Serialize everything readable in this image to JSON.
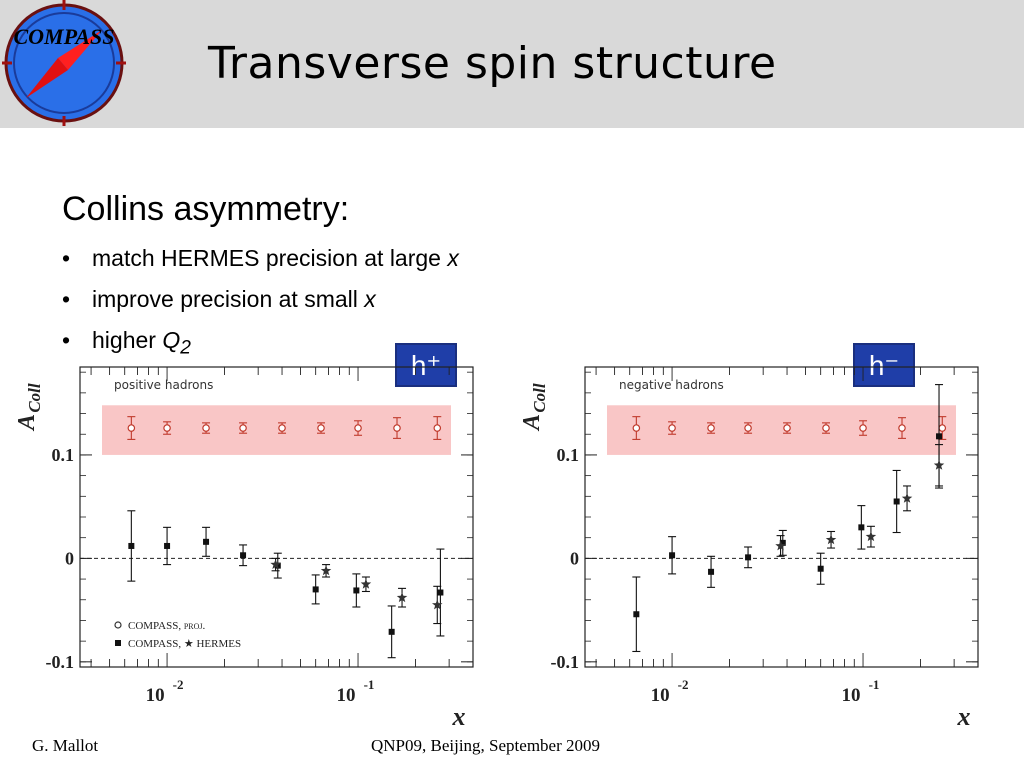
{
  "header": {
    "logo_text": "COMPASS",
    "title": "Transverse spin structure"
  },
  "content": {
    "subheading": "Collins asymmetry:",
    "bullets": [
      {
        "text": "match HERMES precision at large ",
        "var": "x",
        "sub": ""
      },
      {
        "text": "improve precision at small ",
        "var": "x",
        "sub": ""
      },
      {
        "text": "higher ",
        "var": "Q",
        "sub": "2"
      }
    ],
    "bullet_glyph": "•"
  },
  "tags": {
    "left": "h⁺",
    "right": "h⁻"
  },
  "footer": {
    "left": "G. Mallot",
    "center": "QNP09, Beijing, September 2009"
  },
  "colors": {
    "header_bg": "#d9d9d9",
    "band": "#f9c6c6",
    "tag_bg": "#1f3ea8",
    "proj_marker": "#c0392b"
  },
  "chart_data": [
    {
      "type": "scatter",
      "panel_label": "positive hadrons",
      "ylabel": "A",
      "ylabel_sub": "Coll",
      "xlabel": "x",
      "xscale": "log",
      "xlim": [
        0.0035,
        0.4
      ],
      "ylim": [
        -0.105,
        0.185
      ],
      "yticks": [
        {
          "v": 0.1,
          "label": "0.1"
        },
        {
          "v": 0,
          "label": "0"
        },
        {
          "v": -0.1,
          "label": "-0.1"
        }
      ],
      "xtick_labels": [
        {
          "base": "10",
          "exp": "-2",
          "v": 0.01
        },
        {
          "base": "10",
          "exp": "-1",
          "v": 0.1
        }
      ],
      "zero_line": true,
      "band": {
        "y_low": 0.1,
        "y_high": 0.148
      },
      "legend": [
        {
          "marker": "open-circle",
          "text": "COMPASS, proj."
        },
        {
          "marker": "square",
          "text": "COMPASS, ★ HERMES"
        }
      ],
      "series": [
        {
          "name": "COMPASS, proj.",
          "marker": "open-circle",
          "x": [
            0.0065,
            0.01,
            0.016,
            0.025,
            0.04,
            0.064,
            0.1,
            0.16,
            0.26
          ],
          "y": [
            0.126,
            0.126,
            0.126,
            0.126,
            0.126,
            0.126,
            0.126,
            0.126,
            0.126
          ],
          "err": [
            0.011,
            0.006,
            0.005,
            0.005,
            0.005,
            0.005,
            0.007,
            0.01,
            0.011
          ]
        },
        {
          "name": "COMPASS",
          "marker": "square",
          "x": [
            0.0065,
            0.01,
            0.016,
            0.025,
            0.038,
            0.06,
            0.098,
            0.15,
            0.27
          ],
          "y": [
            0.012,
            0.012,
            0.016,
            0.003,
            -0.007,
            -0.03,
            -0.031,
            -0.071,
            -0.033
          ],
          "err": [
            0.034,
            0.018,
            0.014,
            0.01,
            0.012,
            0.014,
            0.016,
            0.025,
            0.042
          ]
        },
        {
          "name": "HERMES",
          "marker": "star",
          "x": [
            0.037,
            0.068,
            0.11,
            0.17,
            0.26
          ],
          "y": [
            -0.006,
            -0.012,
            -0.025,
            -0.038,
            -0.045
          ],
          "err": [
            0.006,
            0.006,
            0.007,
            0.009,
            0.018
          ]
        }
      ]
    },
    {
      "type": "scatter",
      "panel_label": "negative hadrons",
      "ylabel": "A",
      "ylabel_sub": "Coll",
      "xlabel": "x",
      "xscale": "log",
      "xlim": [
        0.0035,
        0.4
      ],
      "ylim": [
        -0.105,
        0.185
      ],
      "yticks": [
        {
          "v": 0.1,
          "label": "0.1"
        },
        {
          "v": 0,
          "label": "0"
        },
        {
          "v": -0.1,
          "label": "-0.1"
        }
      ],
      "xtick_labels": [
        {
          "base": "10",
          "exp": "-2",
          "v": 0.01
        },
        {
          "base": "10",
          "exp": "-1",
          "v": 0.1
        }
      ],
      "zero_line": true,
      "band": {
        "y_low": 0.1,
        "y_high": 0.148
      },
      "legend": [],
      "series": [
        {
          "name": "COMPASS, proj.",
          "marker": "open-circle",
          "x": [
            0.0065,
            0.01,
            0.016,
            0.025,
            0.04,
            0.064,
            0.1,
            0.16,
            0.26
          ],
          "y": [
            0.126,
            0.126,
            0.126,
            0.126,
            0.126,
            0.126,
            0.126,
            0.126,
            0.126
          ],
          "err": [
            0.011,
            0.006,
            0.005,
            0.005,
            0.005,
            0.005,
            0.007,
            0.01,
            0.011
          ]
        },
        {
          "name": "COMPASS",
          "marker": "square",
          "x": [
            0.0065,
            0.01,
            0.016,
            0.025,
            0.038,
            0.06,
            0.098,
            0.15,
            0.25
          ],
          "y": [
            -0.054,
            0.003,
            -0.013,
            0.001,
            0.015,
            -0.01,
            0.03,
            0.055,
            0.118
          ],
          "err": [
            0.036,
            0.018,
            0.015,
            0.01,
            0.012,
            0.015,
            0.021,
            0.03,
            0.05
          ]
        },
        {
          "name": "HERMES",
          "marker": "star",
          "x": [
            0.037,
            0.068,
            0.11,
            0.17,
            0.25
          ],
          "y": [
            0.012,
            0.018,
            0.021,
            0.058,
            0.09
          ],
          "err": [
            0.01,
            0.008,
            0.01,
            0.012,
            0.02
          ]
        }
      ]
    }
  ]
}
